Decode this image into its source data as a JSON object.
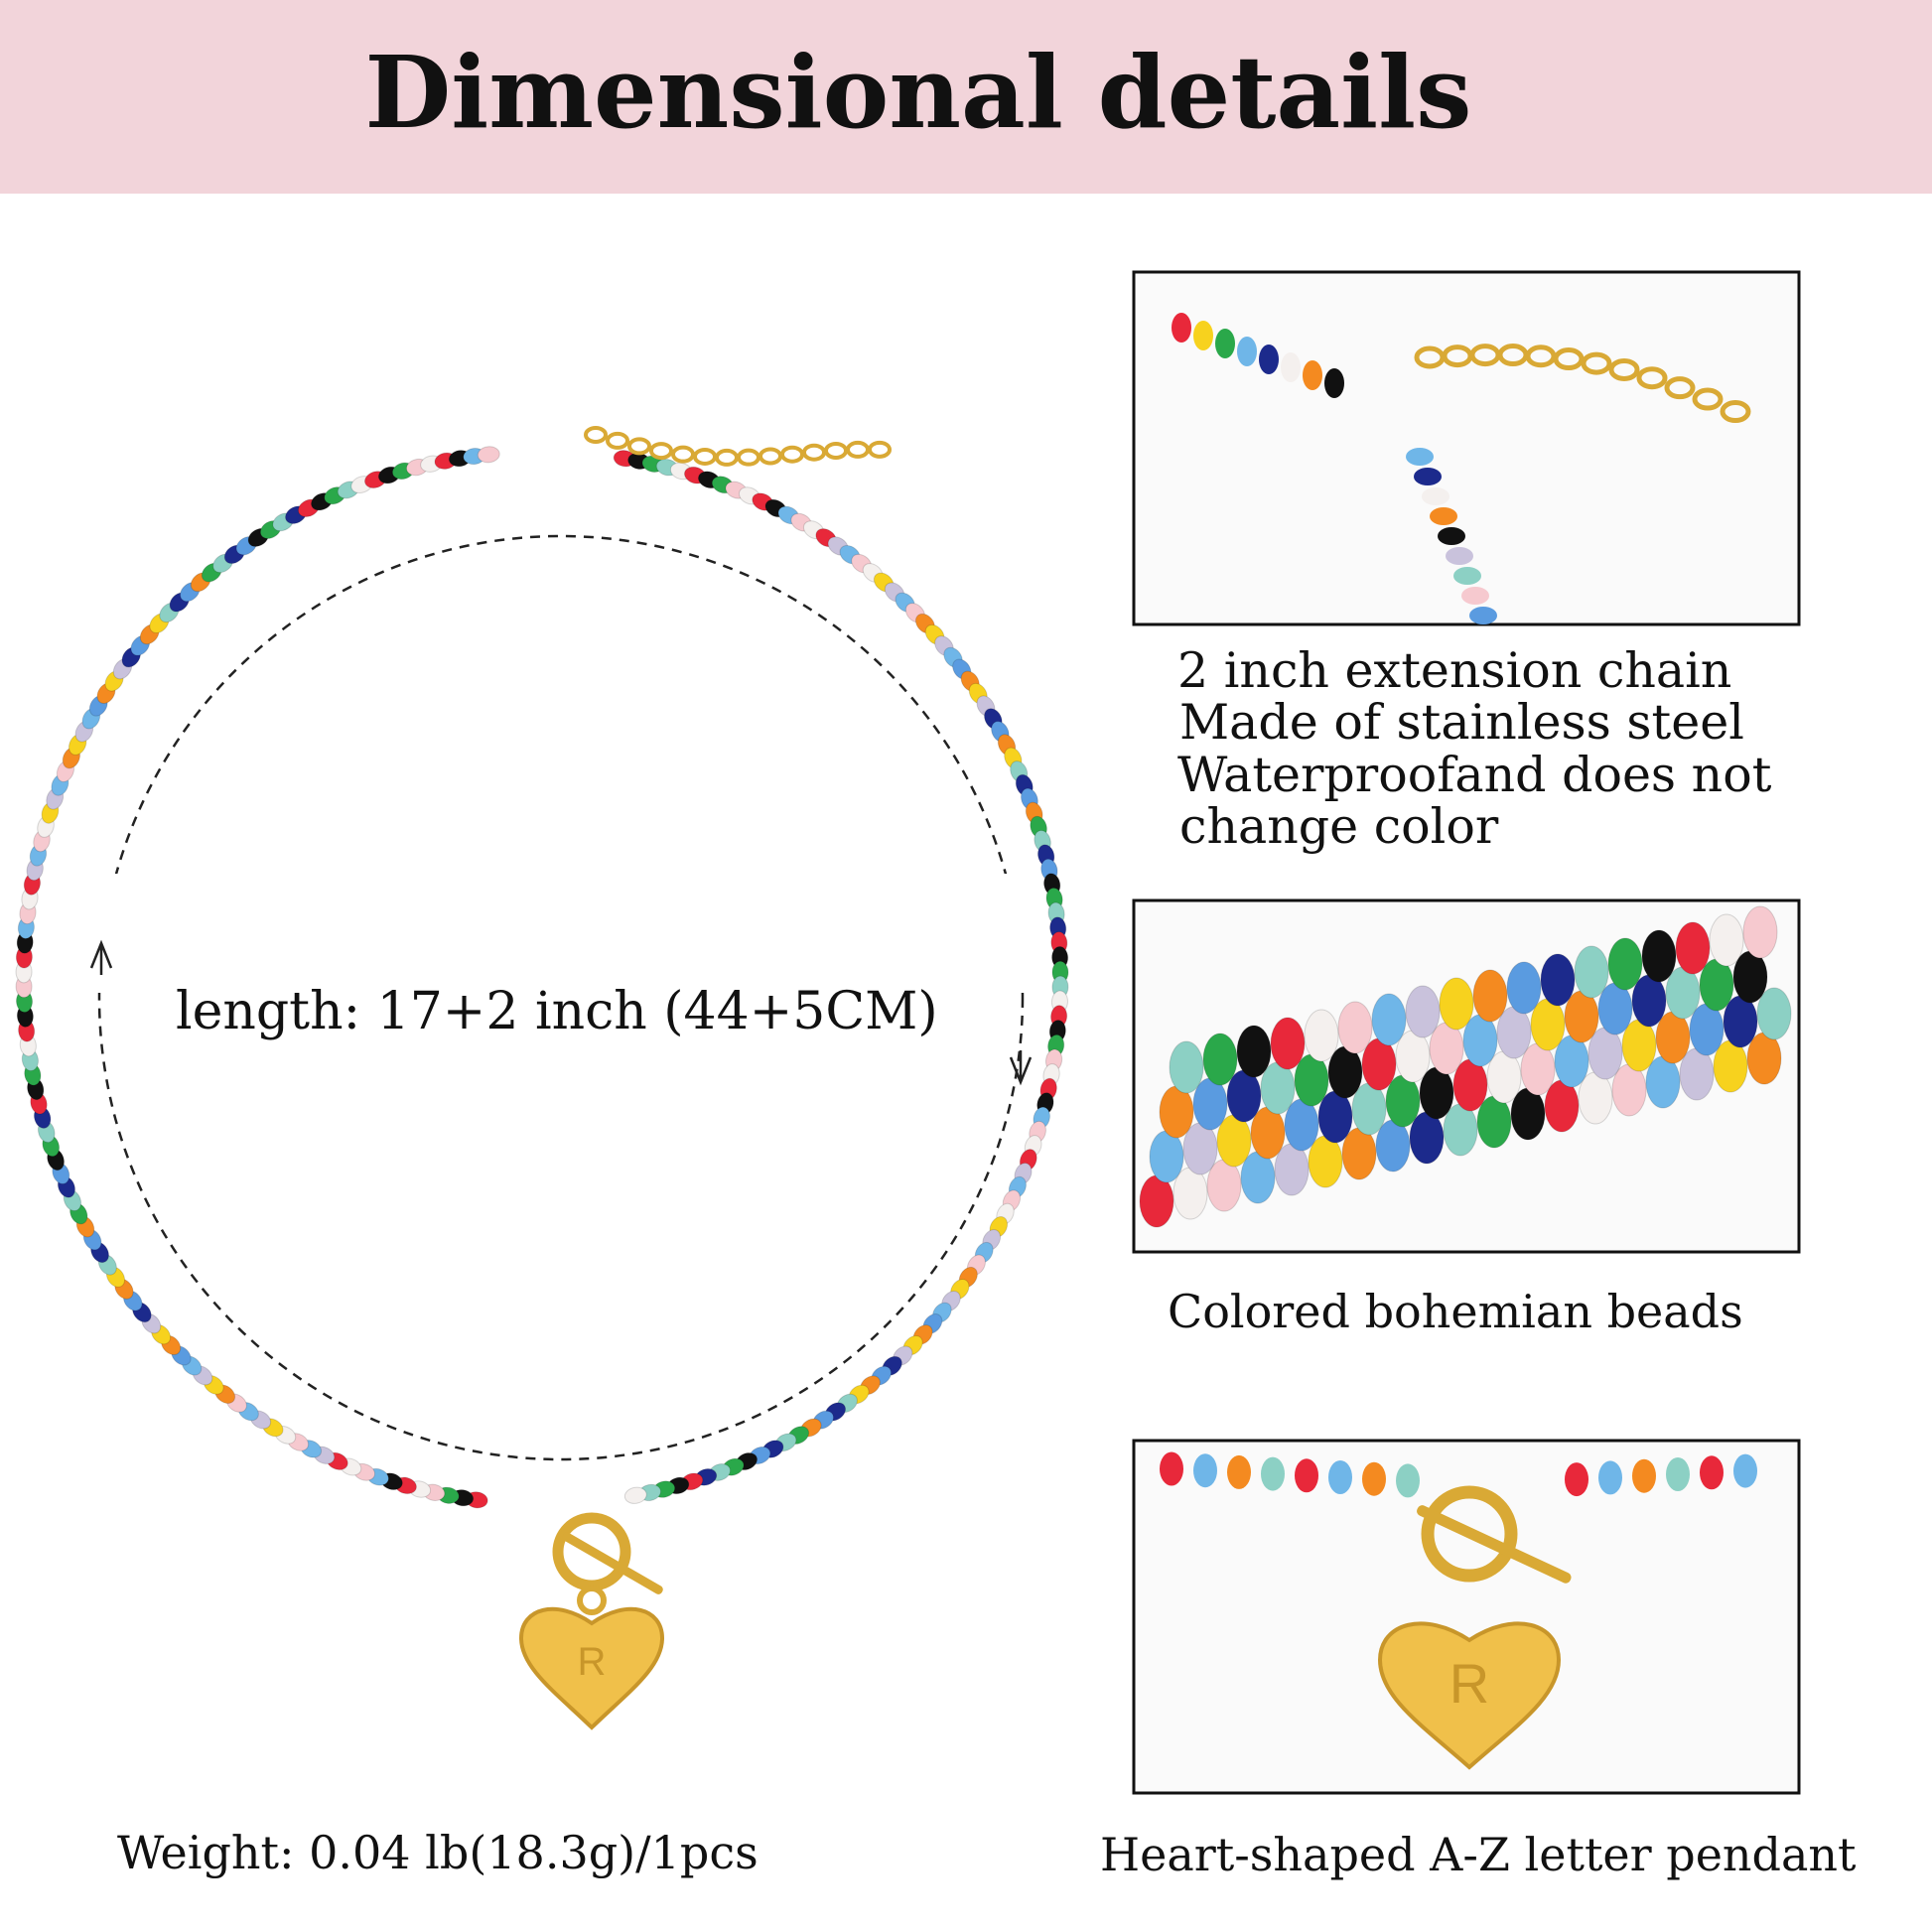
{
  "header": {
    "title": "Dimensional details"
  },
  "main": {
    "length_label": "length: 17+2 inch (44+5CM)",
    "weight_label": "Weight: 0.04 lb(18.3g)/1pcs"
  },
  "panels": [
    {
      "caption_lines": [
        "2 inch extension chain",
        "Made of stainless steel",
        "Waterproofand does not",
        "change color"
      ]
    },
    {
      "caption_lines": [
        "Colored bohemian beads"
      ]
    },
    {
      "caption_lines": [
        "Heart-shaped A-Z letter pendant"
      ]
    }
  ]
}
